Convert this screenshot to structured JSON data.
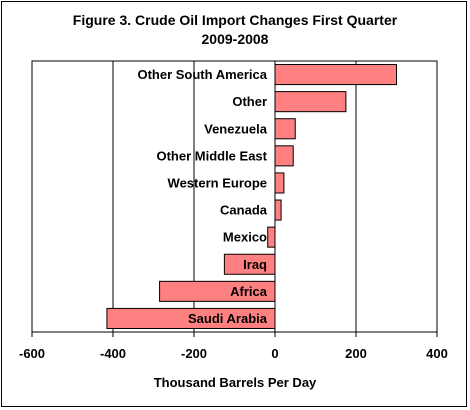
{
  "chart_data": {
    "type": "bar",
    "orientation": "horizontal",
    "title_line1": "Figure 3. Crude Oil Import Changes First Quarter",
    "title_line2": "2009-2008",
    "xlabel": "Thousand Barrels Per Day",
    "ylabel": "",
    "xlim": [
      -600,
      400
    ],
    "xticks": [
      -600,
      -400,
      -200,
      0,
      200,
      400
    ],
    "categories": [
      "Other South America",
      "Other",
      "Venezuela",
      "Other Middle East",
      "Western Europe",
      "Canada",
      "Mexico",
      "Iraq",
      "Africa",
      "Saudi Arabia"
    ],
    "values": [
      300,
      175,
      50,
      45,
      22,
      15,
      -18,
      -125,
      -285,
      -415
    ],
    "grid": "vertical lines at -400, -200, 200",
    "bar_color": "#FF8080",
    "bar_edge_color": "#000000",
    "legend": "none"
  }
}
